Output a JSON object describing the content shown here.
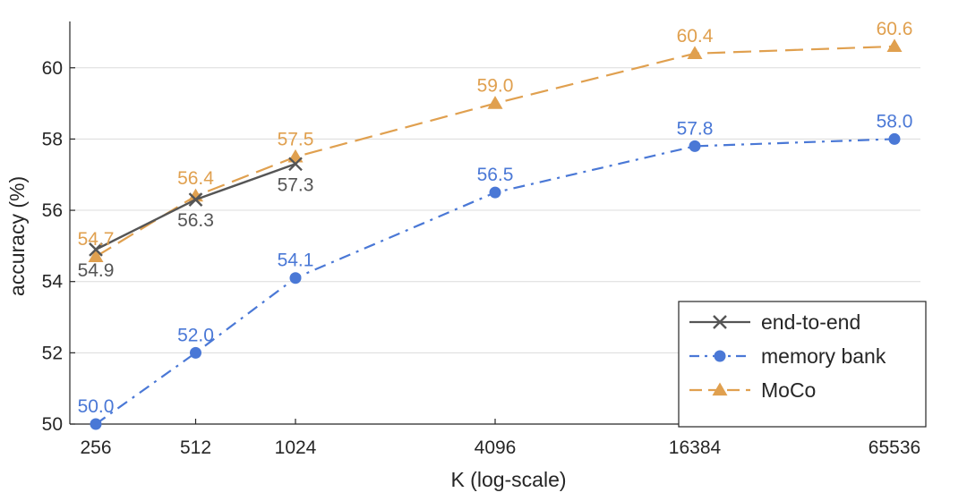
{
  "chart_data": {
    "type": "line",
    "title": "",
    "xlabel": "K (log-scale)",
    "ylabel": "accuracy (%)",
    "x_scale": "log2",
    "categories": [
      "256",
      "512",
      "1024",
      "4096",
      "16384",
      "65536"
    ],
    "x": [
      256,
      512,
      1024,
      4096,
      16384,
      65536
    ],
    "ylim": [
      50,
      61.3
    ],
    "yticks": [
      50,
      52,
      54,
      56,
      58,
      60
    ],
    "grid": "horizontal",
    "legend_position": "bottom-right",
    "series": [
      {
        "name": "end-to-end",
        "color": "#555555",
        "line_style": "solid",
        "marker": "x",
        "x": [
          256,
          512,
          1024
        ],
        "values": [
          54.9,
          56.3,
          57.3
        ],
        "labels": [
          "54.9",
          "56.3",
          "57.3"
        ],
        "label_side": "below"
      },
      {
        "name": "memory bank",
        "color": "#4A78D6",
        "line_style": "dashdot",
        "marker": "circle",
        "x": [
          256,
          512,
          1024,
          4096,
          16384,
          65536
        ],
        "values": [
          50.0,
          52.0,
          54.1,
          56.5,
          57.8,
          58.0
        ],
        "labels": [
          "50.0",
          "52.0",
          "54.1",
          "56.5",
          "57.8",
          "58.0"
        ],
        "label_side": "above"
      },
      {
        "name": "MoCo",
        "color": "#E0A04F",
        "line_style": "dashed",
        "marker": "triangle",
        "x": [
          256,
          512,
          1024,
          4096,
          16384,
          65536
        ],
        "values": [
          54.7,
          56.4,
          57.5,
          59.0,
          60.4,
          60.6
        ],
        "labels": [
          "54.7",
          "56.4",
          "57.5",
          "59.0",
          "60.4",
          "60.6"
        ],
        "label_side": "above"
      }
    ]
  }
}
